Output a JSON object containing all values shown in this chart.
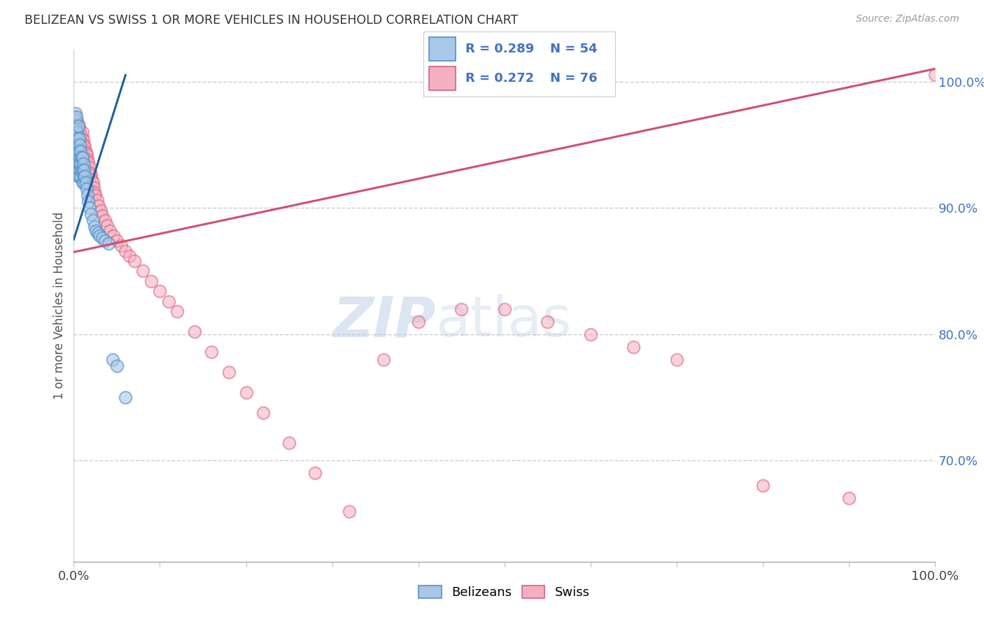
{
  "title": "BELIZEAN VS SWISS 1 OR MORE VEHICLES IN HOUSEHOLD CORRELATION CHART",
  "source": "Source: ZipAtlas.com",
  "ylabel": "1 or more Vehicles in Household",
  "ytick_values": [
    1.0,
    0.9,
    0.8,
    0.7
  ],
  "ytick_labels": [
    "100.0%",
    "90.0%",
    "80.0%",
    "70.0%"
  ],
  "xtick_values": [
    0.0,
    0.1,
    0.2,
    0.3,
    0.4,
    0.5,
    0.6,
    0.7,
    0.8,
    0.9,
    1.0
  ],
  "xtick_labels": [
    "0.0%",
    "",
    "",
    "",
    "",
    "",
    "",
    "",
    "",
    "",
    "100.0%"
  ],
  "watermark_zip": "ZIP",
  "watermark_atlas": "atlas",
  "legend_blue_r": "R = 0.289",
  "legend_blue_n": "N = 54",
  "legend_pink_r": "R = 0.272",
  "legend_pink_n": "N = 76",
  "belizean_color": "#a8c8e8",
  "belizean_edge_color": "#5090c8",
  "swiss_color": "#f4b0c0",
  "swiss_edge_color": "#d86080",
  "belizean_line_color": "#2060a0",
  "swiss_line_color": "#d05070",
  "background_color": "#ffffff",
  "xlim": [
    0.0,
    1.0
  ],
  "ylim": [
    0.62,
    1.025
  ],
  "belizean_x": [
    0.001,
    0.001,
    0.002,
    0.002,
    0.003,
    0.003,
    0.003,
    0.003,
    0.004,
    0.004,
    0.004,
    0.004,
    0.005,
    0.005,
    0.005,
    0.005,
    0.005,
    0.006,
    0.006,
    0.006,
    0.006,
    0.007,
    0.007,
    0.007,
    0.008,
    0.008,
    0.008,
    0.009,
    0.009,
    0.01,
    0.01,
    0.01,
    0.011,
    0.011,
    0.012,
    0.012,
    0.013,
    0.014,
    0.015,
    0.016,
    0.017,
    0.018,
    0.02,
    0.022,
    0.024,
    0.026,
    0.028,
    0.03,
    0.033,
    0.036,
    0.04,
    0.045,
    0.05,
    0.06
  ],
  "belizean_y": [
    0.97,
    0.96,
    0.975,
    0.965,
    0.972,
    0.962,
    0.955,
    0.945,
    0.96,
    0.95,
    0.94,
    0.935,
    0.965,
    0.955,
    0.945,
    0.935,
    0.925,
    0.955,
    0.945,
    0.935,
    0.925,
    0.95,
    0.94,
    0.93,
    0.945,
    0.935,
    0.925,
    0.94,
    0.93,
    0.94,
    0.93,
    0.92,
    0.935,
    0.925,
    0.93,
    0.92,
    0.925,
    0.92,
    0.915,
    0.91,
    0.905,
    0.9,
    0.895,
    0.89,
    0.885,
    0.882,
    0.88,
    0.878,
    0.876,
    0.874,
    0.872,
    0.78,
    0.775,
    0.75
  ],
  "swiss_x": [
    0.002,
    0.002,
    0.003,
    0.003,
    0.004,
    0.004,
    0.005,
    0.005,
    0.005,
    0.006,
    0.006,
    0.007,
    0.007,
    0.008,
    0.008,
    0.008,
    0.009,
    0.009,
    0.01,
    0.01,
    0.01,
    0.011,
    0.011,
    0.012,
    0.013,
    0.013,
    0.014,
    0.015,
    0.016,
    0.016,
    0.017,
    0.018,
    0.019,
    0.02,
    0.021,
    0.022,
    0.023,
    0.024,
    0.025,
    0.027,
    0.029,
    0.031,
    0.033,
    0.036,
    0.039,
    0.042,
    0.046,
    0.05,
    0.055,
    0.06,
    0.065,
    0.07,
    0.08,
    0.09,
    0.1,
    0.11,
    0.12,
    0.14,
    0.16,
    0.18,
    0.2,
    0.22,
    0.25,
    0.28,
    0.32,
    0.36,
    0.4,
    0.45,
    0.5,
    0.55,
    0.6,
    0.65,
    0.7,
    0.8,
    0.9,
    1.0
  ],
  "swiss_y": [
    0.972,
    0.96,
    0.97,
    0.958,
    0.968,
    0.956,
    0.966,
    0.954,
    0.942,
    0.964,
    0.952,
    0.96,
    0.948,
    0.958,
    0.946,
    0.934,
    0.956,
    0.944,
    0.96,
    0.948,
    0.936,
    0.954,
    0.942,
    0.95,
    0.948,
    0.936,
    0.944,
    0.942,
    0.938,
    0.926,
    0.936,
    0.932,
    0.928,
    0.926,
    0.922,
    0.92,
    0.916,
    0.912,
    0.91,
    0.906,
    0.902,
    0.898,
    0.894,
    0.89,
    0.886,
    0.882,
    0.878,
    0.874,
    0.87,
    0.866,
    0.862,
    0.858,
    0.85,
    0.842,
    0.834,
    0.826,
    0.818,
    0.802,
    0.786,
    0.77,
    0.754,
    0.738,
    0.714,
    0.69,
    0.66,
    0.78,
    0.81,
    0.82,
    0.82,
    0.81,
    0.8,
    0.79,
    0.78,
    0.68,
    0.67,
    1.005
  ],
  "bel_line": [
    [
      0.0,
      0.06
    ],
    [
      0.875,
      1.005
    ]
  ],
  "swiss_line": [
    [
      0.0,
      1.0
    ],
    [
      0.865,
      1.01
    ]
  ]
}
